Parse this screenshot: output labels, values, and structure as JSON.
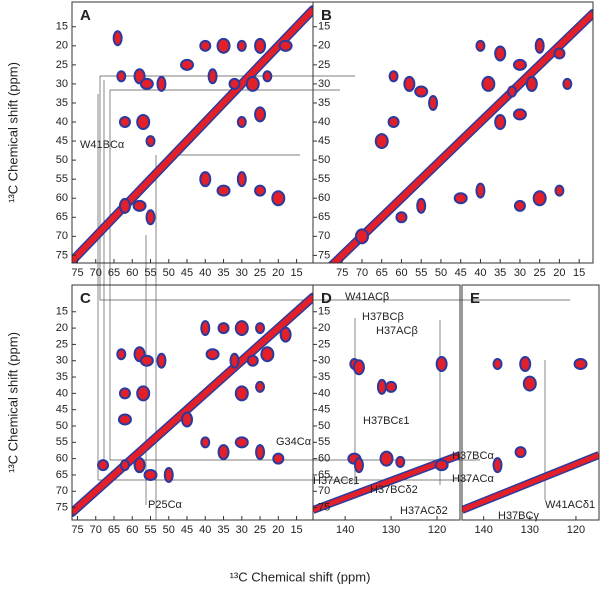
{
  "chart_data": [
    {
      "type": "scatter",
      "panel_label": "A",
      "y_label": "¹³C Chemical shift (ppm)",
      "xlim": [
        76.5,
        10.5
      ],
      "ylim": [
        8.5,
        77
      ],
      "xticks": [
        75,
        70,
        65,
        60,
        55,
        50,
        45,
        40,
        35,
        30,
        25,
        20,
        15
      ],
      "yticks": [
        15,
        20,
        25,
        30,
        35,
        40,
        45,
        50,
        55,
        60,
        65,
        70,
        75
      ],
      "color": "#e3202a",
      "edge_color": "#2b3a9c",
      "peaks": {
        "x": [
          63,
          58,
          56,
          52,
          62,
          57,
          55,
          62,
          58,
          55,
          40,
          35,
          30,
          25,
          18,
          38,
          32,
          27,
          23,
          40,
          35,
          30,
          25,
          20,
          30,
          25,
          45,
          64
        ],
        "y": [
          28,
          28,
          30,
          30,
          40,
          40,
          45,
          62,
          62,
          65,
          20,
          20,
          20,
          20,
          20,
          28,
          30,
          30,
          28,
          55,
          58,
          55,
          58,
          60,
          40,
          38,
          25,
          18
        ]
      },
      "annotations": [
        "W41BCα"
      ]
    },
    {
      "type": "scatter",
      "panel_label": "B",
      "xlim": [
        82.4,
        11.5
      ],
      "ylim": [
        8.5,
        77
      ],
      "xticks": [
        75,
        70,
        65,
        60,
        55,
        50,
        45,
        40,
        35,
        30,
        25,
        20,
        15
      ],
      "yticks": [
        15,
        20,
        25,
        30,
        35,
        40,
        45,
        50,
        55,
        60,
        65,
        70,
        75
      ],
      "color": "#e3202a",
      "edge_color": "#2b3a9c",
      "peaks": {
        "x": [
          62,
          58,
          55,
          52,
          62,
          65,
          40,
          35,
          30,
          25,
          20,
          38,
          32,
          27,
          45,
          40,
          30,
          25,
          20,
          35,
          30,
          55,
          60,
          70,
          18
        ],
        "y": [
          28,
          30,
          32,
          35,
          40,
          45,
          20,
          22,
          25,
          20,
          22,
          30,
          32,
          30,
          60,
          58,
          62,
          60,
          58,
          40,
          38,
          62,
          65,
          70,
          30
        ]
      },
      "annotations": []
    },
    {
      "type": "scatter",
      "panel_label": "C",
      "y_label": "¹³C Chemical shift (ppm)",
      "x_label": "¹³C Chemical shift (ppm)",
      "xlim": [
        76.5,
        10.5
      ],
      "ylim": [
        6.8,
        78.8
      ],
      "xticks": [
        75,
        70,
        65,
        60,
        55,
        50,
        45,
        40,
        35,
        30,
        25,
        20,
        15
      ],
      "yticks": [
        15,
        20,
        25,
        30,
        35,
        40,
        45,
        50,
        55,
        60,
        65,
        70,
        75
      ],
      "color": "#e3202a",
      "edge_color": "#2b3a9c",
      "peaks": {
        "x": [
          63,
          58,
          56,
          52,
          62,
          57,
          62,
          58,
          55,
          40,
          35,
          30,
          25,
          18,
          38,
          32,
          27,
          23,
          40,
          35,
          30,
          25,
          20,
          30,
          25,
          45,
          62,
          50,
          68
        ],
        "y": [
          28,
          28,
          30,
          30,
          40,
          40,
          62,
          62,
          65,
          20,
          20,
          20,
          20,
          22,
          28,
          30,
          30,
          28,
          55,
          58,
          55,
          58,
          60,
          40,
          38,
          48,
          48,
          65,
          62
        ]
      },
      "annotations": [
        "G34Cα",
        "P25Cα"
      ]
    },
    {
      "type": "scatter",
      "panel_label": "D",
      "xlim": [
        147,
        115
      ],
      "ylim": [
        6.8,
        78.8
      ],
      "xticks": [
        140,
        130,
        120
      ],
      "yticks": [
        15,
        20,
        25,
        30,
        35,
        40,
        45,
        50,
        55,
        60,
        65,
        70,
        75
      ],
      "color": "#e3202a",
      "edge_color": "#2b3a9c",
      "peaks": {
        "x": [
          138,
          137,
          138,
          132,
          130,
          131,
          128,
          119,
          119,
          137
        ],
        "y": [
          31,
          32,
          60,
          38,
          38,
          60,
          61,
          31,
          62,
          62
        ]
      },
      "annotations": [
        "W41ACβ",
        "H37BCβ",
        "H37ACβ",
        "H37BCε1",
        "H37ACε1",
        "H37BCδ2",
        "H37ACδ2"
      ]
    },
    {
      "type": "scatter",
      "panel_label": "E",
      "xlim": [
        144.7,
        115
      ],
      "ylim": [
        6.8,
        78.8
      ],
      "xticks": [
        140,
        130,
        120
      ],
      "color": "#e3202a",
      "edge_color": "#2b3a9c",
      "peaks": {
        "x": [
          137,
          131,
          119,
          137,
          132,
          130
        ],
        "y": [
          31,
          31,
          31,
          62,
          58,
          37
        ]
      },
      "annotations": [
        "H37BCα",
        "H37ACα",
        "W41ACδ1",
        "H37BCγ"
      ]
    }
  ]
}
